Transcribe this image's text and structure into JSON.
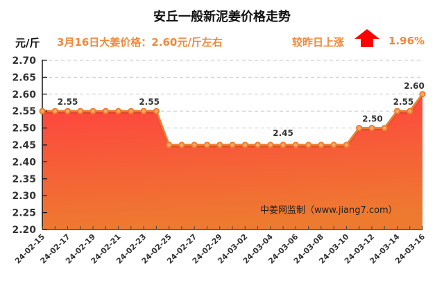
{
  "header": {
    "title": "安丘一般新泥姜价格走势",
    "unit": "元/斤",
    "price_text": "3月16日大姜价格：2.60元/斤左右",
    "change_label": "较昨日上涨",
    "change_icon": "up-arrow-icon",
    "change_pct": "1.96%"
  },
  "colors": {
    "accent_text": "#f0883a",
    "line": "#ee7d2e",
    "fill_top": "#ff4040",
    "fill_bottom": "#ee7a30",
    "arrow": "#ff0000",
    "grid": "#c8c8c8"
  },
  "watermark": "中姜网监制（www.jiang7.com）",
  "chart_data": {
    "type": "area",
    "title": "安丘一般新泥姜价格走势",
    "xlabel": "",
    "ylabel": "元/斤",
    "ylim": [
      2.2,
      2.7
    ],
    "yticks": [
      "2.70",
      "2.65",
      "2.60",
      "2.55",
      "2.50",
      "2.45",
      "2.40",
      "2.35",
      "2.30",
      "2.25",
      "2.20"
    ],
    "x_tick_labels": [
      "24-02-15",
      "24-02-17",
      "24-02-19",
      "24-02-21",
      "24-02-23",
      "24-02-25",
      "24-02-27",
      "24-02-29",
      "24-03-02",
      "24-03-04",
      "24-03-06",
      "24-03-08",
      "24-03-10",
      "24-03-12",
      "24-03-14",
      "24-03-16"
    ],
    "grid": true,
    "x": [
      "24-02-15",
      "24-02-16",
      "24-02-17",
      "24-02-18",
      "24-02-19",
      "24-02-20",
      "24-02-21",
      "24-02-22",
      "24-02-23",
      "24-02-24",
      "24-02-25",
      "24-02-26",
      "24-02-27",
      "24-02-28",
      "24-02-29",
      "24-03-01",
      "24-03-02",
      "24-03-03",
      "24-03-04",
      "24-03-05",
      "24-03-06",
      "24-03-07",
      "24-03-08",
      "24-03-09",
      "24-03-10",
      "24-03-11",
      "24-03-12",
      "24-03-13",
      "24-03-14",
      "24-03-15",
      "24-03-16"
    ],
    "series": [
      {
        "name": "安丘一般新泥姜价格",
        "values": [
          2.55,
          2.55,
          2.55,
          2.55,
          2.55,
          2.55,
          2.55,
          2.55,
          2.55,
          2.55,
          2.45,
          2.45,
          2.45,
          2.45,
          2.45,
          2.45,
          2.45,
          2.45,
          2.45,
          2.45,
          2.45,
          2.45,
          2.45,
          2.45,
          2.45,
          2.5,
          2.5,
          2.5,
          2.55,
          2.55,
          2.6
        ]
      }
    ],
    "data_labels": [
      {
        "index": 2,
        "text": "2.55"
      },
      {
        "index": 8,
        "text": "2.55"
      },
      {
        "index": 19,
        "text": "2.45"
      },
      {
        "index": 26,
        "text": "2.50"
      },
      {
        "index": 28,
        "text": "2.55"
      },
      {
        "index": 30,
        "text": "2.60"
      }
    ],
    "annotation": "中姜网监制（www.jiang7.com）"
  }
}
